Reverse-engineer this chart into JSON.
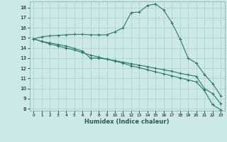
{
  "xlabel": "Humidex (Indice chaleur)",
  "ylabel": "",
  "background_color": "#cce8e8",
  "grid_color": "#aacece",
  "line_color": "#2a7a6a",
  "xlim": [
    -0.5,
    23.5
  ],
  "ylim": [
    7.8,
    18.6
  ],
  "yticks": [
    8,
    9,
    10,
    11,
    12,
    13,
    14,
    15,
    16,
    17,
    18
  ],
  "xticks": [
    0,
    1,
    2,
    3,
    4,
    5,
    6,
    7,
    8,
    9,
    10,
    11,
    12,
    13,
    14,
    15,
    16,
    17,
    18,
    19,
    20,
    21,
    22,
    23
  ],
  "line1_x": [
    0,
    1,
    2,
    3,
    4,
    5,
    6,
    7,
    8,
    9,
    10,
    11,
    12,
    13,
    14,
    15,
    16,
    17,
    18,
    19,
    20,
    21,
    22,
    23
  ],
  "line1_y": [
    14.9,
    15.1,
    15.2,
    15.25,
    15.3,
    15.35,
    15.35,
    15.3,
    15.3,
    15.3,
    15.6,
    16.0,
    17.5,
    17.55,
    18.2,
    18.35,
    17.75,
    16.5,
    14.9,
    13.0,
    12.5,
    11.4,
    10.5,
    9.3
  ],
  "line2_x": [
    0,
    1,
    2,
    3,
    4,
    5,
    6,
    7,
    8,
    9,
    10,
    11,
    12,
    13,
    14,
    15,
    16,
    17,
    18,
    19,
    20,
    21,
    22,
    23
  ],
  "line2_y": [
    14.9,
    14.65,
    14.5,
    14.35,
    14.2,
    13.95,
    13.7,
    13.0,
    13.0,
    12.9,
    12.75,
    12.6,
    12.45,
    12.3,
    12.15,
    12.0,
    11.85,
    11.7,
    11.5,
    11.35,
    11.2,
    10.0,
    9.5,
    8.5
  ],
  "line3_x": [
    0,
    1,
    2,
    3,
    4,
    5,
    6,
    7,
    8,
    9,
    10,
    11,
    12,
    13,
    14,
    15,
    16,
    17,
    18,
    19,
    20,
    21,
    22,
    23
  ],
  "line3_y": [
    14.9,
    14.65,
    14.4,
    14.2,
    14.0,
    13.8,
    13.55,
    13.3,
    13.1,
    12.9,
    12.7,
    12.5,
    12.25,
    12.05,
    11.85,
    11.65,
    11.45,
    11.25,
    11.05,
    10.85,
    10.65,
    9.8,
    8.4,
    7.9
  ]
}
